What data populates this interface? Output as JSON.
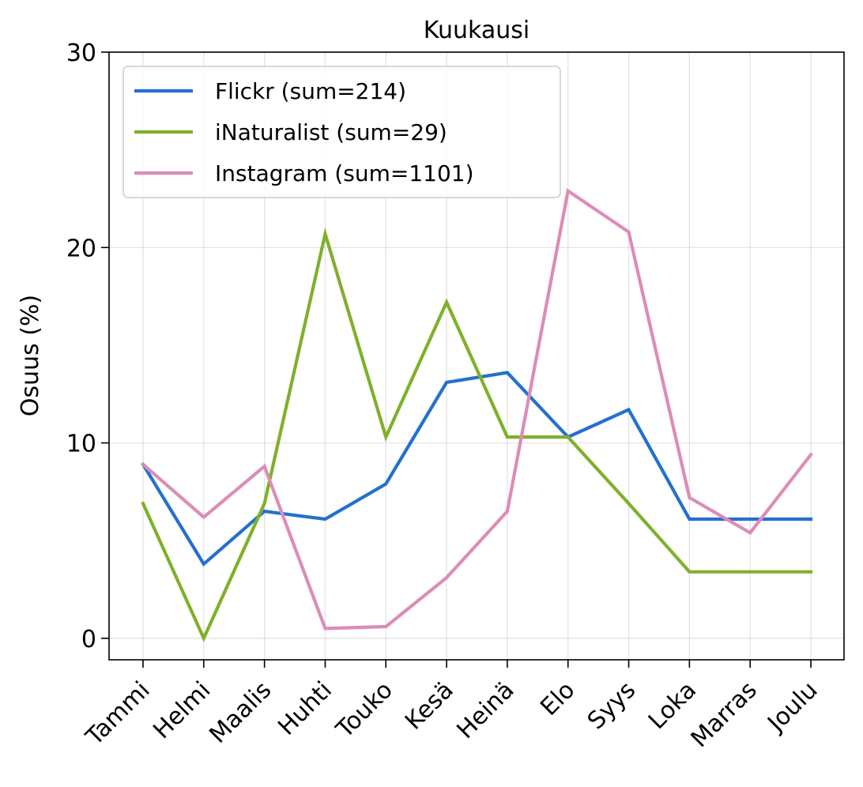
{
  "chart_data": {
    "type": "line",
    "title": "Kuukausi",
    "xlabel": "",
    "ylabel": "Osuus (%)",
    "categories": [
      "Tammi",
      "Helmi",
      "Maalis",
      "Huhti",
      "Touko",
      "Kesä",
      "Heinä",
      "Elo",
      "Syys",
      "Loka",
      "Marras",
      "Joulu"
    ],
    "ylim": [
      -1.1,
      30
    ],
    "yticks": [
      0,
      10,
      20,
      30
    ],
    "grid": true,
    "legend_position": "top-left",
    "series": [
      {
        "name": "Flickr (sum=214)",
        "color": "#2470cf",
        "values": [
          8.9,
          3.8,
          6.5,
          6.1,
          7.9,
          13.1,
          13.6,
          10.3,
          11.7,
          6.1,
          6.1,
          6.1
        ]
      },
      {
        "name": "iNaturalist (sum=29)",
        "color": "#7fb02b",
        "values": [
          6.9,
          0.0,
          6.9,
          20.7,
          10.3,
          17.2,
          10.3,
          10.3,
          6.9,
          3.4,
          3.4,
          3.4
        ]
      },
      {
        "name": "Instagram (sum=1101)",
        "color": "#dc8cb7",
        "values": [
          8.9,
          6.2,
          8.8,
          0.5,
          0.6,
          3.1,
          6.5,
          22.9,
          20.8,
          7.2,
          5.4,
          9.4
        ]
      }
    ]
  }
}
